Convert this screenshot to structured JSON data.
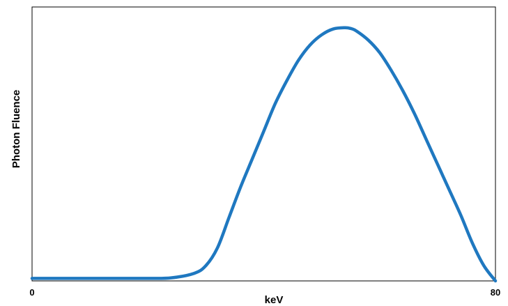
{
  "chart_data": {
    "type": "line",
    "title": "",
    "xlabel": "keV",
    "ylabel": "Photon Fluence",
    "xlim": [
      0,
      80
    ],
    "ylim": [
      0,
      1
    ],
    "x_ticks": [
      {
        "value": 0,
        "label": "0"
      },
      {
        "value": 80,
        "label": "80"
      }
    ],
    "y_ticks": [],
    "grid": false,
    "legend": "none",
    "series": [
      {
        "color": "#1f78c0",
        "x": [
          0,
          5,
          10,
          15,
          20,
          24,
          28,
          30,
          32,
          34,
          36,
          38,
          40,
          42,
          44,
          46,
          48,
          50,
          52,
          54,
          55,
          56,
          58,
          60,
          62,
          64,
          66,
          68,
          70,
          72,
          74,
          76,
          78,
          80
        ],
        "y": [
          0.01,
          0.01,
          0.01,
          0.01,
          0.01,
          0.012,
          0.03,
          0.06,
          0.13,
          0.25,
          0.37,
          0.48,
          0.59,
          0.7,
          0.79,
          0.87,
          0.93,
          0.97,
          0.993,
          0.998,
          0.995,
          0.985,
          0.95,
          0.9,
          0.83,
          0.75,
          0.66,
          0.56,
          0.46,
          0.36,
          0.26,
          0.15,
          0.06,
          0.0
        ]
      }
    ]
  }
}
